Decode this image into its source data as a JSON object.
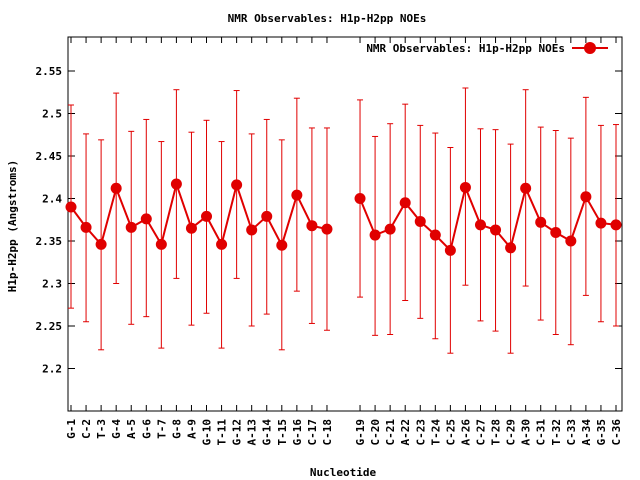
{
  "chart_data": {
    "type": "line",
    "title": "NMR Observables: H1p-H2pp NOEs",
    "xlabel": "Nucleotide",
    "ylabel": "H1p-H2pp (Angstroms)",
    "ylim": [
      2.15,
      2.59
    ],
    "yticks": [
      "2.2",
      "2.25",
      "2.3",
      "2.35",
      "2.4",
      "2.45",
      "2.5",
      "2.55"
    ],
    "legend_position": "top-right",
    "color": "#e00000",
    "series": [
      {
        "name": "NMR Observables: H1p-H2pp NOEs",
        "points": [
          {
            "label": "G-1",
            "y": 2.39,
            "lo": 2.271,
            "hi": 2.51
          },
          {
            "label": "C-2",
            "y": 2.366,
            "lo": 2.255,
            "hi": 2.476
          },
          {
            "label": "T-3",
            "y": 2.346,
            "lo": 2.222,
            "hi": 2.469
          },
          {
            "label": "G-4",
            "y": 2.412,
            "lo": 2.3,
            "hi": 2.524
          },
          {
            "label": "A-5",
            "y": 2.366,
            "lo": 2.252,
            "hi": 2.479
          },
          {
            "label": "G-6",
            "y": 2.376,
            "lo": 2.261,
            "hi": 2.493
          },
          {
            "label": "T-7",
            "y": 2.346,
            "lo": 2.224,
            "hi": 2.467
          },
          {
            "label": "G-8",
            "y": 2.417,
            "lo": 2.306,
            "hi": 2.528
          },
          {
            "label": "A-9",
            "y": 2.365,
            "lo": 2.251,
            "hi": 2.478
          },
          {
            "label": "G-10",
            "y": 2.379,
            "lo": 2.265,
            "hi": 2.492
          },
          {
            "label": "T-11",
            "y": 2.346,
            "lo": 2.224,
            "hi": 2.467
          },
          {
            "label": "G-12",
            "y": 2.416,
            "lo": 2.306,
            "hi": 2.527
          },
          {
            "label": "A-13",
            "y": 2.363,
            "lo": 2.25,
            "hi": 2.476
          },
          {
            "label": "G-14",
            "y": 2.379,
            "lo": 2.264,
            "hi": 2.493
          },
          {
            "label": "T-15",
            "y": 2.345,
            "lo": 2.222,
            "hi": 2.469
          },
          {
            "label": "G-16",
            "y": 2.404,
            "lo": 2.291,
            "hi": 2.518
          },
          {
            "label": "C-17",
            "y": 2.368,
            "lo": 2.253,
            "hi": 2.483
          },
          {
            "label": "C-18",
            "y": 2.364,
            "lo": 2.245,
            "hi": 2.483
          },
          {
            "label": "G-19",
            "y": 2.4,
            "lo": 2.284,
            "hi": 2.516
          },
          {
            "label": "C-20",
            "y": 2.357,
            "lo": 2.239,
            "hi": 2.473
          },
          {
            "label": "C-21",
            "y": 2.364,
            "lo": 2.24,
            "hi": 2.488
          },
          {
            "label": "A-22",
            "y": 2.395,
            "lo": 2.28,
            "hi": 2.511
          },
          {
            "label": "C-23",
            "y": 2.373,
            "lo": 2.259,
            "hi": 2.486
          },
          {
            "label": "T-24",
            "y": 2.357,
            "lo": 2.235,
            "hi": 2.477
          },
          {
            "label": "C-25",
            "y": 2.339,
            "lo": 2.218,
            "hi": 2.46
          },
          {
            "label": "A-26",
            "y": 2.413,
            "lo": 2.298,
            "hi": 2.53
          },
          {
            "label": "C-27",
            "y": 2.369,
            "lo": 2.256,
            "hi": 2.482
          },
          {
            "label": "T-28",
            "y": 2.363,
            "lo": 2.244,
            "hi": 2.481
          },
          {
            "label": "C-29",
            "y": 2.342,
            "lo": 2.218,
            "hi": 2.464
          },
          {
            "label": "A-30",
            "y": 2.412,
            "lo": 2.297,
            "hi": 2.528
          },
          {
            "label": "C-31",
            "y": 2.372,
            "lo": 2.257,
            "hi": 2.484
          },
          {
            "label": "T-32",
            "y": 2.36,
            "lo": 2.24,
            "hi": 2.48
          },
          {
            "label": "C-33",
            "y": 2.35,
            "lo": 2.228,
            "hi": 2.471
          },
          {
            "label": "A-34",
            "y": 2.402,
            "lo": 2.286,
            "hi": 2.519
          },
          {
            "label": "G-35",
            "y": 2.371,
            "lo": 2.255,
            "hi": 2.486
          },
          {
            "label": "C-36",
            "y": 2.369,
            "lo": 2.25,
            "hi": 2.487
          }
        ]
      }
    ]
  }
}
